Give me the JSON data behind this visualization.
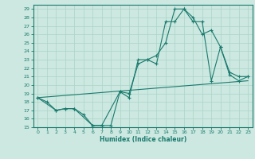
{
  "xlabel": "Humidex (Indice chaleur)",
  "ylabel": "",
  "bg_color": "#cce8e0",
  "line_color": "#1a7a6e",
  "grid_color": "#aad4c8",
  "xlim": [
    -0.5,
    23.5
  ],
  "ylim": [
    15,
    29.5
  ],
  "xticks": [
    0,
    1,
    2,
    3,
    4,
    5,
    6,
    7,
    8,
    9,
    10,
    11,
    12,
    13,
    14,
    15,
    16,
    17,
    18,
    19,
    20,
    21,
    22,
    23
  ],
  "yticks": [
    15,
    16,
    17,
    18,
    19,
    20,
    21,
    22,
    23,
    24,
    25,
    26,
    27,
    28,
    29
  ],
  "line1_x": [
    0,
    1,
    2,
    3,
    4,
    5,
    6,
    7,
    9,
    10,
    11,
    12,
    13,
    14,
    15,
    16,
    17,
    18,
    19,
    20,
    21,
    22,
    23
  ],
  "line1_y": [
    18.5,
    18.0,
    17.0,
    17.2,
    17.2,
    16.5,
    15.2,
    15.2,
    19.2,
    18.5,
    23.0,
    23.0,
    22.5,
    27.5,
    27.5,
    29.0,
    27.5,
    27.5,
    20.5,
    24.5,
    21.2,
    20.5,
    21.0
  ],
  "line2_x": [
    0,
    23
  ],
  "line2_y": [
    18.5,
    20.5
  ],
  "line3_x": [
    0,
    2,
    3,
    4,
    6,
    7,
    8,
    9,
    10,
    11,
    12,
    13,
    14,
    15,
    16,
    17,
    18,
    19,
    20,
    21,
    22,
    23
  ],
  "line3_y": [
    18.5,
    17.0,
    17.2,
    17.2,
    15.2,
    15.2,
    15.2,
    19.2,
    19.0,
    22.5,
    23.0,
    23.5,
    25.0,
    29.0,
    29.0,
    28.0,
    26.0,
    26.5,
    24.5,
    21.5,
    21.0,
    21.0
  ]
}
